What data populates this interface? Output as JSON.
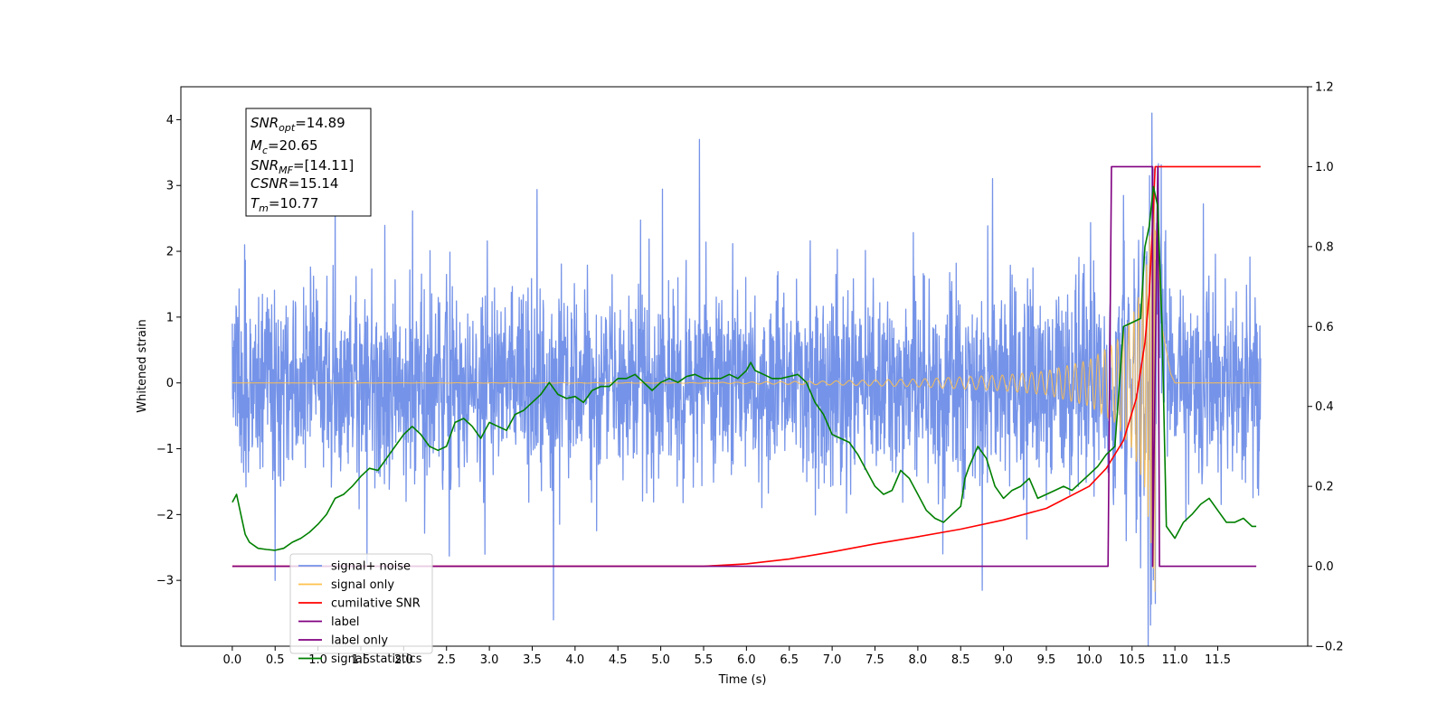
{
  "chart_data": {
    "type": "line",
    "xlabel": "Time (s)",
    "ylabel": "Whitened strain",
    "xlim": [
      -0.6,
      12.55
    ],
    "ylim_left": [
      -4.0,
      4.5
    ],
    "ylim_right": [
      -0.2,
      1.2
    ],
    "x_ticks": [
      0.0,
      0.5,
      1.0,
      1.5,
      2.0,
      2.5,
      3.0,
      3.5,
      4.0,
      4.5,
      5.0,
      5.5,
      6.0,
      6.5,
      7.0,
      7.5,
      8.0,
      8.5,
      9.0,
      9.5,
      10.0,
      10.5,
      11.0,
      11.5
    ],
    "x_tick_labels": [
      "0.0",
      "0.5",
      "1.0",
      "1.5",
      "2.0",
      "2.5",
      "3.0",
      "3.5",
      "4.0",
      "4.5",
      "5.0",
      "5.5",
      "6.0",
      "6.5",
      "7.0",
      "7.5",
      "8.0",
      "8.5",
      "9.0",
      "9.5",
      "10.0",
      "10.5",
      "11.0",
      "11.5"
    ],
    "y_left_ticks": [
      -3,
      -2,
      -1,
      0,
      1,
      2,
      3,
      4
    ],
    "y_left_tick_labels": [
      "−3",
      "−2",
      "−1",
      "0",
      "1",
      "2",
      "3",
      "4"
    ],
    "y_right_ticks": [
      -0.2,
      0.0,
      0.2,
      0.4,
      0.6,
      0.8,
      1.0,
      1.2
    ],
    "y_right_tick_labels": [
      "−0.2",
      "0.0",
      "0.2",
      "0.4",
      "0.6",
      "0.8",
      "1.0",
      "1.2"
    ],
    "grid": false,
    "legend_position": "lower-left",
    "annotation": {
      "snr_opt": {
        "name": "SNR",
        "sub": "opt",
        "value": "=14.89"
      },
      "mc": {
        "name": "M",
        "sub": "c",
        "value": "=20.65"
      },
      "snr_mf": {
        "name": "SNR",
        "sub": "MF",
        "value": "=[14.11]"
      },
      "csnr": {
        "name": "CSNR",
        "sub": "",
        "value": "=15.14"
      },
      "tm": {
        "name": "T",
        "sub": "m",
        "value": "=10.77"
      }
    },
    "series": [
      {
        "name": "signal+ noise",
        "color": "#7593e8",
        "axis": "left",
        "kind": "noise",
        "x_range": [
          0.0,
          12.0
        ],
        "sample_step": 0.004,
        "noise_amplitude_typical": 1.0,
        "extrema": [
          {
            "x": 1.2,
            "y": 3.0
          },
          {
            "x": 5.45,
            "y": 3.7
          },
          {
            "x": 10.73,
            "y": 4.1
          },
          {
            "x": 3.75,
            "y": -3.6
          },
          {
            "x": 10.77,
            "y": -3.35
          },
          {
            "x": 0.5,
            "y": -3.0
          },
          {
            "x": 8.75,
            "y": -3.15
          }
        ]
      },
      {
        "name": "signal only",
        "color": "#ffc04d",
        "axis": "left",
        "kind": "chirp",
        "merger_time": 10.77,
        "envelope": [
          {
            "x": 0.0,
            "y": 0.0
          },
          {
            "x": 5.5,
            "y": 0.005
          },
          {
            "x": 7.0,
            "y": 0.03
          },
          {
            "x": 8.0,
            "y": 0.06
          },
          {
            "x": 9.0,
            "y": 0.12
          },
          {
            "x": 9.5,
            "y": 0.18
          },
          {
            "x": 10.0,
            "y": 0.35
          },
          {
            "x": 10.3,
            "y": 0.6
          },
          {
            "x": 10.5,
            "y": 1.0
          },
          {
            "x": 10.65,
            "y": 1.6
          },
          {
            "x": 10.72,
            "y": 2.4
          },
          {
            "x": 10.77,
            "y": 3.3
          },
          {
            "x": 10.8,
            "y": 3.0
          },
          {
            "x": 10.85,
            "y": 1.2
          },
          {
            "x": 10.95,
            "y": 0.2
          },
          {
            "x": 11.0,
            "y": 0.0
          },
          {
            "x": 12.0,
            "y": 0.0
          }
        ]
      },
      {
        "name": "cumilative SNR",
        "color": "#ff0000",
        "axis": "right",
        "x": [
          0.0,
          5.5,
          6.0,
          6.5,
          7.0,
          7.5,
          8.0,
          8.5,
          9.0,
          9.5,
          10.0,
          10.2,
          10.4,
          10.55,
          10.65,
          10.7,
          10.74,
          10.77,
          10.8,
          12.0
        ],
        "y": [
          0.0,
          0.0,
          0.006,
          0.018,
          0.036,
          0.056,
          0.074,
          0.093,
          0.116,
          0.145,
          0.2,
          0.245,
          0.315,
          0.42,
          0.56,
          0.68,
          0.85,
          1.0,
          1.0,
          1.0
        ]
      },
      {
        "name": "label",
        "color": "#800080",
        "axis": "right",
        "x": [
          0.0,
          10.22,
          10.26,
          10.74,
          10.74,
          10.8,
          10.82,
          11.95
        ],
        "y": [
          0.0,
          0.0,
          1.0,
          1.0,
          0.0,
          1.0,
          0.0,
          0.0
        ]
      },
      {
        "name": "label only",
        "color": "#800080",
        "axis": "right",
        "x": [],
        "y": []
      },
      {
        "name": "signal statistics",
        "color": "#008000",
        "axis": "right",
        "x": [
          0.0,
          0.05,
          0.1,
          0.15,
          0.2,
          0.3,
          0.4,
          0.5,
          0.6,
          0.7,
          0.8,
          0.9,
          1.0,
          1.1,
          1.2,
          1.3,
          1.4,
          1.5,
          1.6,
          1.7,
          1.8,
          1.9,
          2.0,
          2.1,
          2.2,
          2.3,
          2.4,
          2.5,
          2.6,
          2.7,
          2.8,
          2.9,
          3.0,
          3.1,
          3.2,
          3.3,
          3.4,
          3.5,
          3.6,
          3.7,
          3.8,
          3.9,
          4.0,
          4.1,
          4.2,
          4.3,
          4.4,
          4.5,
          4.6,
          4.7,
          4.8,
          4.9,
          5.0,
          5.1,
          5.2,
          5.3,
          5.4,
          5.5,
          5.6,
          5.7,
          5.8,
          5.9,
          6.0,
          6.05,
          6.1,
          6.2,
          6.3,
          6.4,
          6.5,
          6.6,
          6.7,
          6.8,
          6.9,
          7.0,
          7.1,
          7.2,
          7.3,
          7.4,
          7.5,
          7.6,
          7.7,
          7.8,
          7.9,
          8.0,
          8.1,
          8.2,
          8.3,
          8.4,
          8.5,
          8.55,
          8.6,
          8.7,
          8.8,
          8.9,
          9.0,
          9.1,
          9.2,
          9.3,
          9.4,
          9.5,
          9.6,
          9.7,
          9.8,
          9.9,
          10.0,
          10.1,
          10.2,
          10.3,
          10.4,
          10.5,
          10.6,
          10.65,
          10.7,
          10.75,
          10.8,
          10.85,
          10.9,
          11.0,
          11.1,
          11.2,
          11.3,
          11.4,
          11.5,
          11.6,
          11.7,
          11.8,
          11.9,
          11.95
        ],
        "y": [
          0.16,
          0.18,
          0.13,
          0.08,
          0.06,
          0.045,
          0.042,
          0.04,
          0.045,
          0.06,
          0.07,
          0.085,
          0.105,
          0.13,
          0.17,
          0.18,
          0.2,
          0.225,
          0.245,
          0.24,
          0.27,
          0.3,
          0.33,
          0.35,
          0.33,
          0.3,
          0.29,
          0.3,
          0.36,
          0.37,
          0.35,
          0.32,
          0.36,
          0.35,
          0.34,
          0.38,
          0.39,
          0.41,
          0.43,
          0.46,
          0.43,
          0.42,
          0.425,
          0.41,
          0.44,
          0.45,
          0.45,
          0.47,
          0.47,
          0.48,
          0.46,
          0.44,
          0.46,
          0.47,
          0.46,
          0.475,
          0.48,
          0.47,
          0.47,
          0.47,
          0.48,
          0.47,
          0.49,
          0.51,
          0.49,
          0.48,
          0.47,
          0.47,
          0.475,
          0.48,
          0.46,
          0.41,
          0.38,
          0.33,
          0.32,
          0.31,
          0.28,
          0.24,
          0.2,
          0.18,
          0.19,
          0.24,
          0.22,
          0.18,
          0.14,
          0.12,
          0.11,
          0.13,
          0.15,
          0.22,
          0.25,
          0.3,
          0.27,
          0.2,
          0.17,
          0.19,
          0.2,
          0.22,
          0.17,
          0.18,
          0.19,
          0.2,
          0.19,
          0.21,
          0.23,
          0.25,
          0.28,
          0.3,
          0.6,
          0.61,
          0.62,
          0.8,
          0.85,
          0.95,
          0.9,
          0.6,
          0.1,
          0.07,
          0.11,
          0.13,
          0.155,
          0.17,
          0.14,
          0.11,
          0.11,
          0.12,
          0.1,
          0.1
        ]
      }
    ]
  }
}
